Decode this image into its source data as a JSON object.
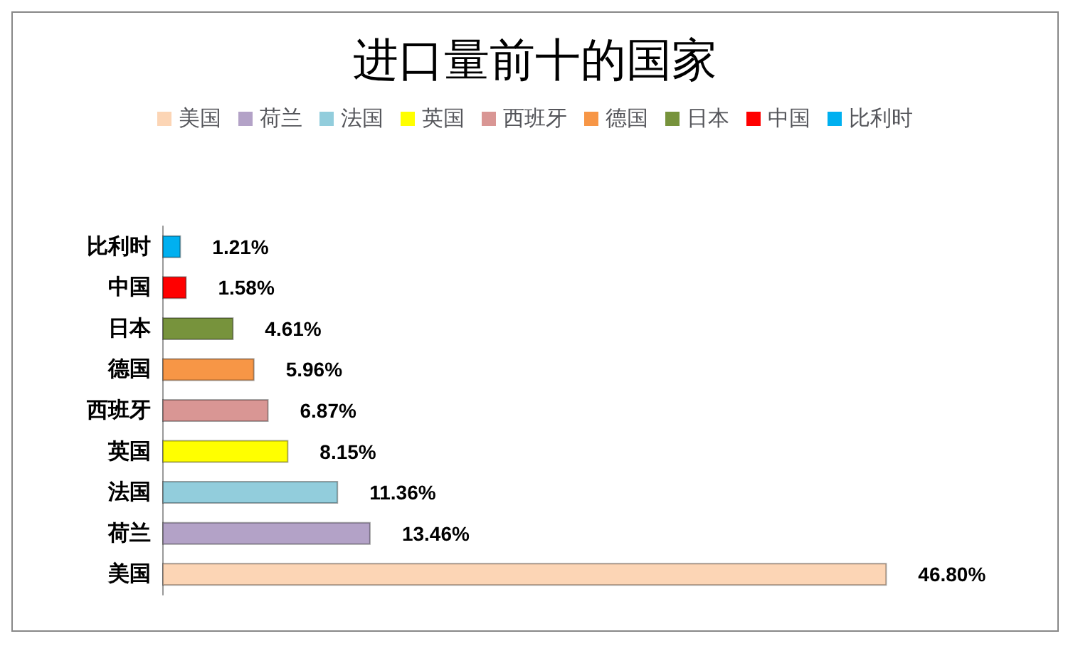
{
  "chart_data": {
    "type": "bar",
    "orientation": "horizontal",
    "title": "进口量前十的国家",
    "categories": [
      "比利时",
      "中国",
      "日本",
      "德国",
      "西班牙",
      "英国",
      "法国",
      "荷兰",
      "美国"
    ],
    "series": [
      {
        "name": "美国",
        "color": "#fcd5b5",
        "values": [
          null,
          null,
          null,
          null,
          null,
          null,
          null,
          null,
          46.8
        ],
        "value_labels": [
          null,
          null,
          null,
          null,
          null,
          null,
          null,
          null,
          "46.80%"
        ]
      },
      {
        "name": "荷兰",
        "color": "#b3a2c7",
        "values": [
          null,
          null,
          null,
          null,
          null,
          null,
          null,
          13.46,
          null
        ],
        "value_labels": [
          null,
          null,
          null,
          null,
          null,
          null,
          null,
          "13.46%",
          null
        ]
      },
      {
        "name": "法国",
        "color": "#92cddc",
        "values": [
          null,
          null,
          null,
          null,
          null,
          null,
          11.36,
          null,
          null
        ],
        "value_labels": [
          null,
          null,
          null,
          null,
          null,
          null,
          "11.36%",
          null,
          null
        ]
      },
      {
        "name": "英国",
        "color": "#ffff00",
        "values": [
          null,
          null,
          null,
          null,
          null,
          8.15,
          null,
          null,
          null
        ],
        "value_labels": [
          null,
          null,
          null,
          null,
          null,
          "8.15%",
          null,
          null,
          null
        ]
      },
      {
        "name": "西班牙",
        "color": "#d99694",
        "values": [
          null,
          null,
          null,
          null,
          6.87,
          null,
          null,
          null,
          null
        ],
        "value_labels": [
          null,
          null,
          null,
          null,
          "6.87%",
          null,
          null,
          null,
          null
        ]
      },
      {
        "name": "德国",
        "color": "#f79646",
        "values": [
          null,
          null,
          null,
          5.96,
          null,
          null,
          null,
          null,
          null
        ],
        "value_labels": [
          null,
          null,
          null,
          "5.96%",
          null,
          null,
          null,
          null,
          null
        ]
      },
      {
        "name": "日本",
        "color": "#77933c",
        "values": [
          null,
          null,
          4.61,
          null,
          null,
          null,
          null,
          null,
          null
        ],
        "value_labels": [
          null,
          null,
          "4.61%",
          null,
          null,
          null,
          null,
          null,
          null
        ]
      },
      {
        "name": "中国",
        "color": "#ff0000",
        "values": [
          null,
          1.58,
          null,
          null,
          null,
          null,
          null,
          null,
          null
        ],
        "value_labels": [
          null,
          "1.58%",
          null,
          null,
          null,
          null,
          null,
          null,
          null
        ]
      },
      {
        "name": "比利时",
        "color": "#00b0f0",
        "values": [
          1.21,
          null,
          null,
          null,
          null,
          null,
          null,
          null,
          null
        ],
        "value_labels": [
          "1.21%",
          null,
          null,
          null,
          null,
          null,
          null,
          null,
          null
        ]
      }
    ],
    "legend": "top"
  }
}
